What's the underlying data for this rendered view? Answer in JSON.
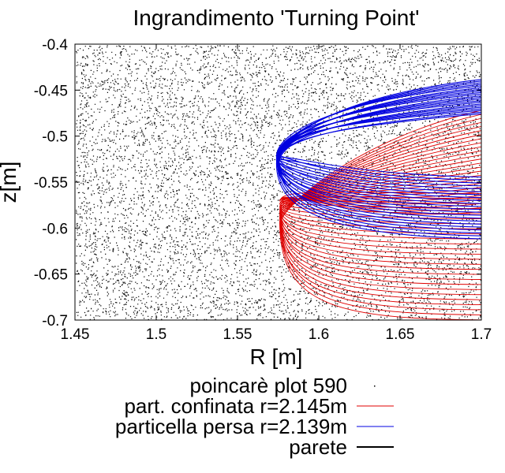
{
  "chart_data": {
    "type": "scatter",
    "title": "Ingrandimento 'Turning Point'",
    "xlabel": "R [m]",
    "ylabel": "z[m]",
    "xlim": [
      1.45,
      1.7
    ],
    "ylim": [
      -0.7,
      -0.4
    ],
    "xticks": [
      "1.45",
      "1.5",
      "1.55",
      "1.6",
      "1.65",
      "1.7"
    ],
    "xtick_values": [
      1.45,
      1.5,
      1.55,
      1.6,
      1.65,
      1.7
    ],
    "yticks": [
      "-0.4",
      "-0.45",
      "-0.5",
      "-0.55",
      "-0.6",
      "-0.65",
      "-0.7"
    ],
    "ytick_values": [
      -0.4,
      -0.45,
      -0.5,
      -0.55,
      -0.6,
      -0.65,
      -0.7
    ],
    "grid": false,
    "legend_position": "bottom",
    "series": [
      {
        "name": "poincarè plot 590",
        "kind": "points",
        "color": "#000000",
        "region_x": [
          1.45,
          1.7
        ],
        "region_y": [
          -0.7,
          -0.4
        ]
      },
      {
        "name": "part. confinata r=2.145m",
        "kind": "orbits",
        "color": "#e00000",
        "turning_point": [
          1.576,
          -0.585
        ],
        "z_range": [
          -0.7,
          -0.46
        ]
      },
      {
        "name": "particella persa r=2.139m",
        "kind": "orbits",
        "color": "#0000e0",
        "turning_point": [
          1.574,
          -0.53
        ],
        "z_range": [
          -0.615,
          -0.43
        ]
      },
      {
        "name": "parete",
        "kind": "line",
        "color": "#000000"
      }
    ]
  }
}
